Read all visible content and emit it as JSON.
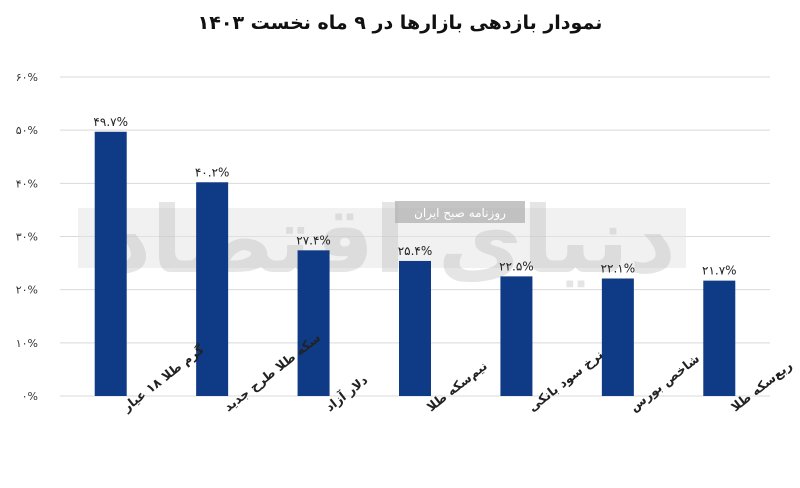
{
  "chart_data": {
    "type": "bar",
    "title": "نمودار بازدهی بازارها در ۹ ماه نخست ۱۴۰۳",
    "categories": [
      "گرم طلا ۱۸ عیار",
      "سکه طلا طرح جدید",
      "دلار آزاد",
      "نیم‌سکه طلا",
      "نرخ سود بانکی",
      "شاخص بورس",
      "ربع‌سکه طلا"
    ],
    "values": [
      49.7,
      40.2,
      27.4,
      25.4,
      22.5,
      22.1,
      21.7
    ],
    "data_labels": [
      "۴۹.۷%",
      "۴۰.۲%",
      "۲۷.۴%",
      "۲۵.۴%",
      "۲۲.۵%",
      "۲۲.۱%",
      "۲۱.۷%"
    ],
    "y_ticks": [
      0,
      10,
      20,
      30,
      40,
      50,
      60
    ],
    "y_tick_labels": [
      "۰%",
      "۱۰%",
      "۲۰%",
      "۳۰%",
      "۴۰%",
      "۵۰%",
      "۶۰%"
    ],
    "ylim": [
      0,
      60
    ],
    "grid": true,
    "bar_color": "#0f3a85",
    "grid_color": "#d9d9d9"
  },
  "watermark": {
    "main": "دنیای اقتصاد",
    "sub": "روزنامه صبح ایران"
  }
}
